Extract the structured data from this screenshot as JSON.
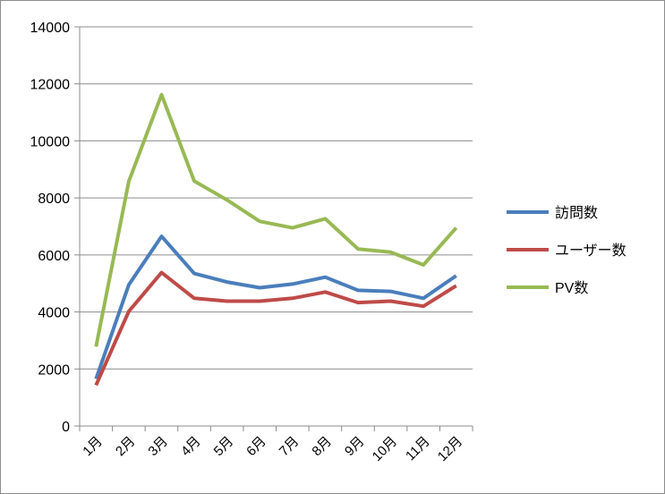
{
  "chart_data": {
    "type": "line",
    "title": "",
    "xlabel": "",
    "ylabel": "",
    "categories": [
      "1月",
      "2月",
      "3月",
      "4月",
      "5月",
      "6月",
      "7月",
      "8月",
      "9月",
      "10月",
      "11月",
      "12月"
    ],
    "ylim": [
      0,
      14000
    ],
    "yticks": [
      "0",
      "2000",
      "4000",
      "6000",
      "8000",
      "10000",
      "12000",
      "14000"
    ],
    "grid": true,
    "legend_position": "right",
    "series": [
      {
        "name": "訪問数",
        "color": "#4a7ebb",
        "values": [
          1650,
          4950,
          6650,
          5350,
          5050,
          4850,
          4980,
          5220,
          4760,
          4720,
          4480,
          5270
        ]
      },
      {
        "name": "ユーザー数",
        "color": "#be4b48",
        "values": [
          1430,
          4020,
          5380,
          4480,
          4380,
          4380,
          4480,
          4700,
          4330,
          4380,
          4200,
          4920
        ]
      },
      {
        "name": "PV数",
        "color": "#98b954",
        "values": [
          2780,
          8580,
          11620,
          8590,
          7930,
          7180,
          6950,
          7270,
          6210,
          6100,
          5650,
          6950
        ]
      }
    ]
  }
}
